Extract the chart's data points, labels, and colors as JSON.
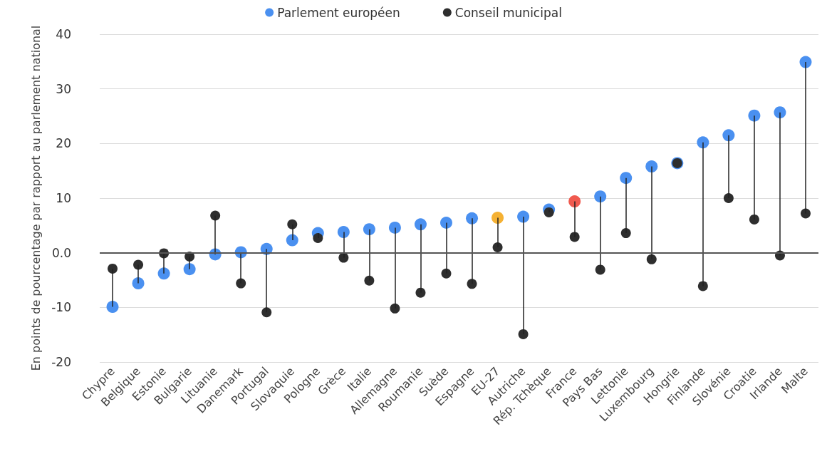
{
  "chart_data": {
    "type": "scatter",
    "ylabel": "En points de pourcentage par rapport au parlement national",
    "categories": [
      "Chypre",
      "Belgique",
      "Estonie",
      "Bulgarie",
      "Lituanie",
      "Danemark",
      "Portugal",
      "Slovaquie",
      "Pologne",
      "Grèce",
      "Italie",
      "Allemagne",
      "Roumanie",
      "Suède",
      "Espagne",
      "EU-27",
      "Autriche",
      "Rép. Tchèque",
      "France",
      "Pays Bas",
      "Lettonie",
      "Luxembourg",
      "Hongrie",
      "Finlande",
      "Slovénie",
      "Croatie",
      "Irlande",
      "Malte"
    ],
    "series": [
      {
        "name": "Parlement européen",
        "color": "#4a90f0",
        "colors": [
          "#4a90f0",
          "#4a90f0",
          "#4a90f0",
          "#4a90f0",
          "#4a90f0",
          "#4a90f0",
          "#4a90f0",
          "#4a90f0",
          "#4a90f0",
          "#4a90f0",
          "#4a90f0",
          "#4a90f0",
          "#4a90f0",
          "#4a90f0",
          "#4a90f0",
          "#f5b133",
          "#4a90f0",
          "#4a90f0",
          "#f05a4f",
          "#4a90f0",
          "#4a90f0",
          "#4a90f0",
          "#4a90f0",
          "#4a90f0",
          "#4a90f0",
          "#4a90f0",
          "#4a90f0",
          "#4a90f0"
        ],
        "values": [
          -9.9,
          -5.6,
          -3.8,
          -3.0,
          -0.3,
          0.1,
          0.7,
          2.3,
          3.6,
          3.8,
          4.3,
          4.6,
          5.2,
          5.5,
          6.3,
          6.4,
          6.6,
          7.9,
          9.4,
          10.3,
          13.7,
          15.8,
          16.4,
          20.2,
          21.5,
          25.1,
          25.7,
          34.9
        ]
      },
      {
        "name": "Conseil municipal",
        "color": "#2e2e2e",
        "values": [
          -2.9,
          -2.2,
          -0.1,
          -0.7,
          6.8,
          -5.6,
          -10.9,
          5.2,
          2.7,
          -0.9,
          -5.1,
          -10.2,
          -7.3,
          -3.8,
          -5.7,
          1.0,
          -14.9,
          7.4,
          2.9,
          -3.1,
          3.6,
          -1.2,
          16.4,
          -6.1,
          10.0,
          6.1,
          -0.5,
          7.2
        ]
      }
    ],
    "ylim": [
      -20,
      40
    ],
    "yticks": [
      -20,
      -10,
      {
        "value": 0,
        "label": "0.0"
      },
      10,
      20,
      30,
      40
    ],
    "ref_lines": [
      {
        "axis": "y",
        "value": 0,
        "color": "#555555"
      }
    ],
    "grid": "y",
    "legend": "top",
    "marker": "circle"
  }
}
